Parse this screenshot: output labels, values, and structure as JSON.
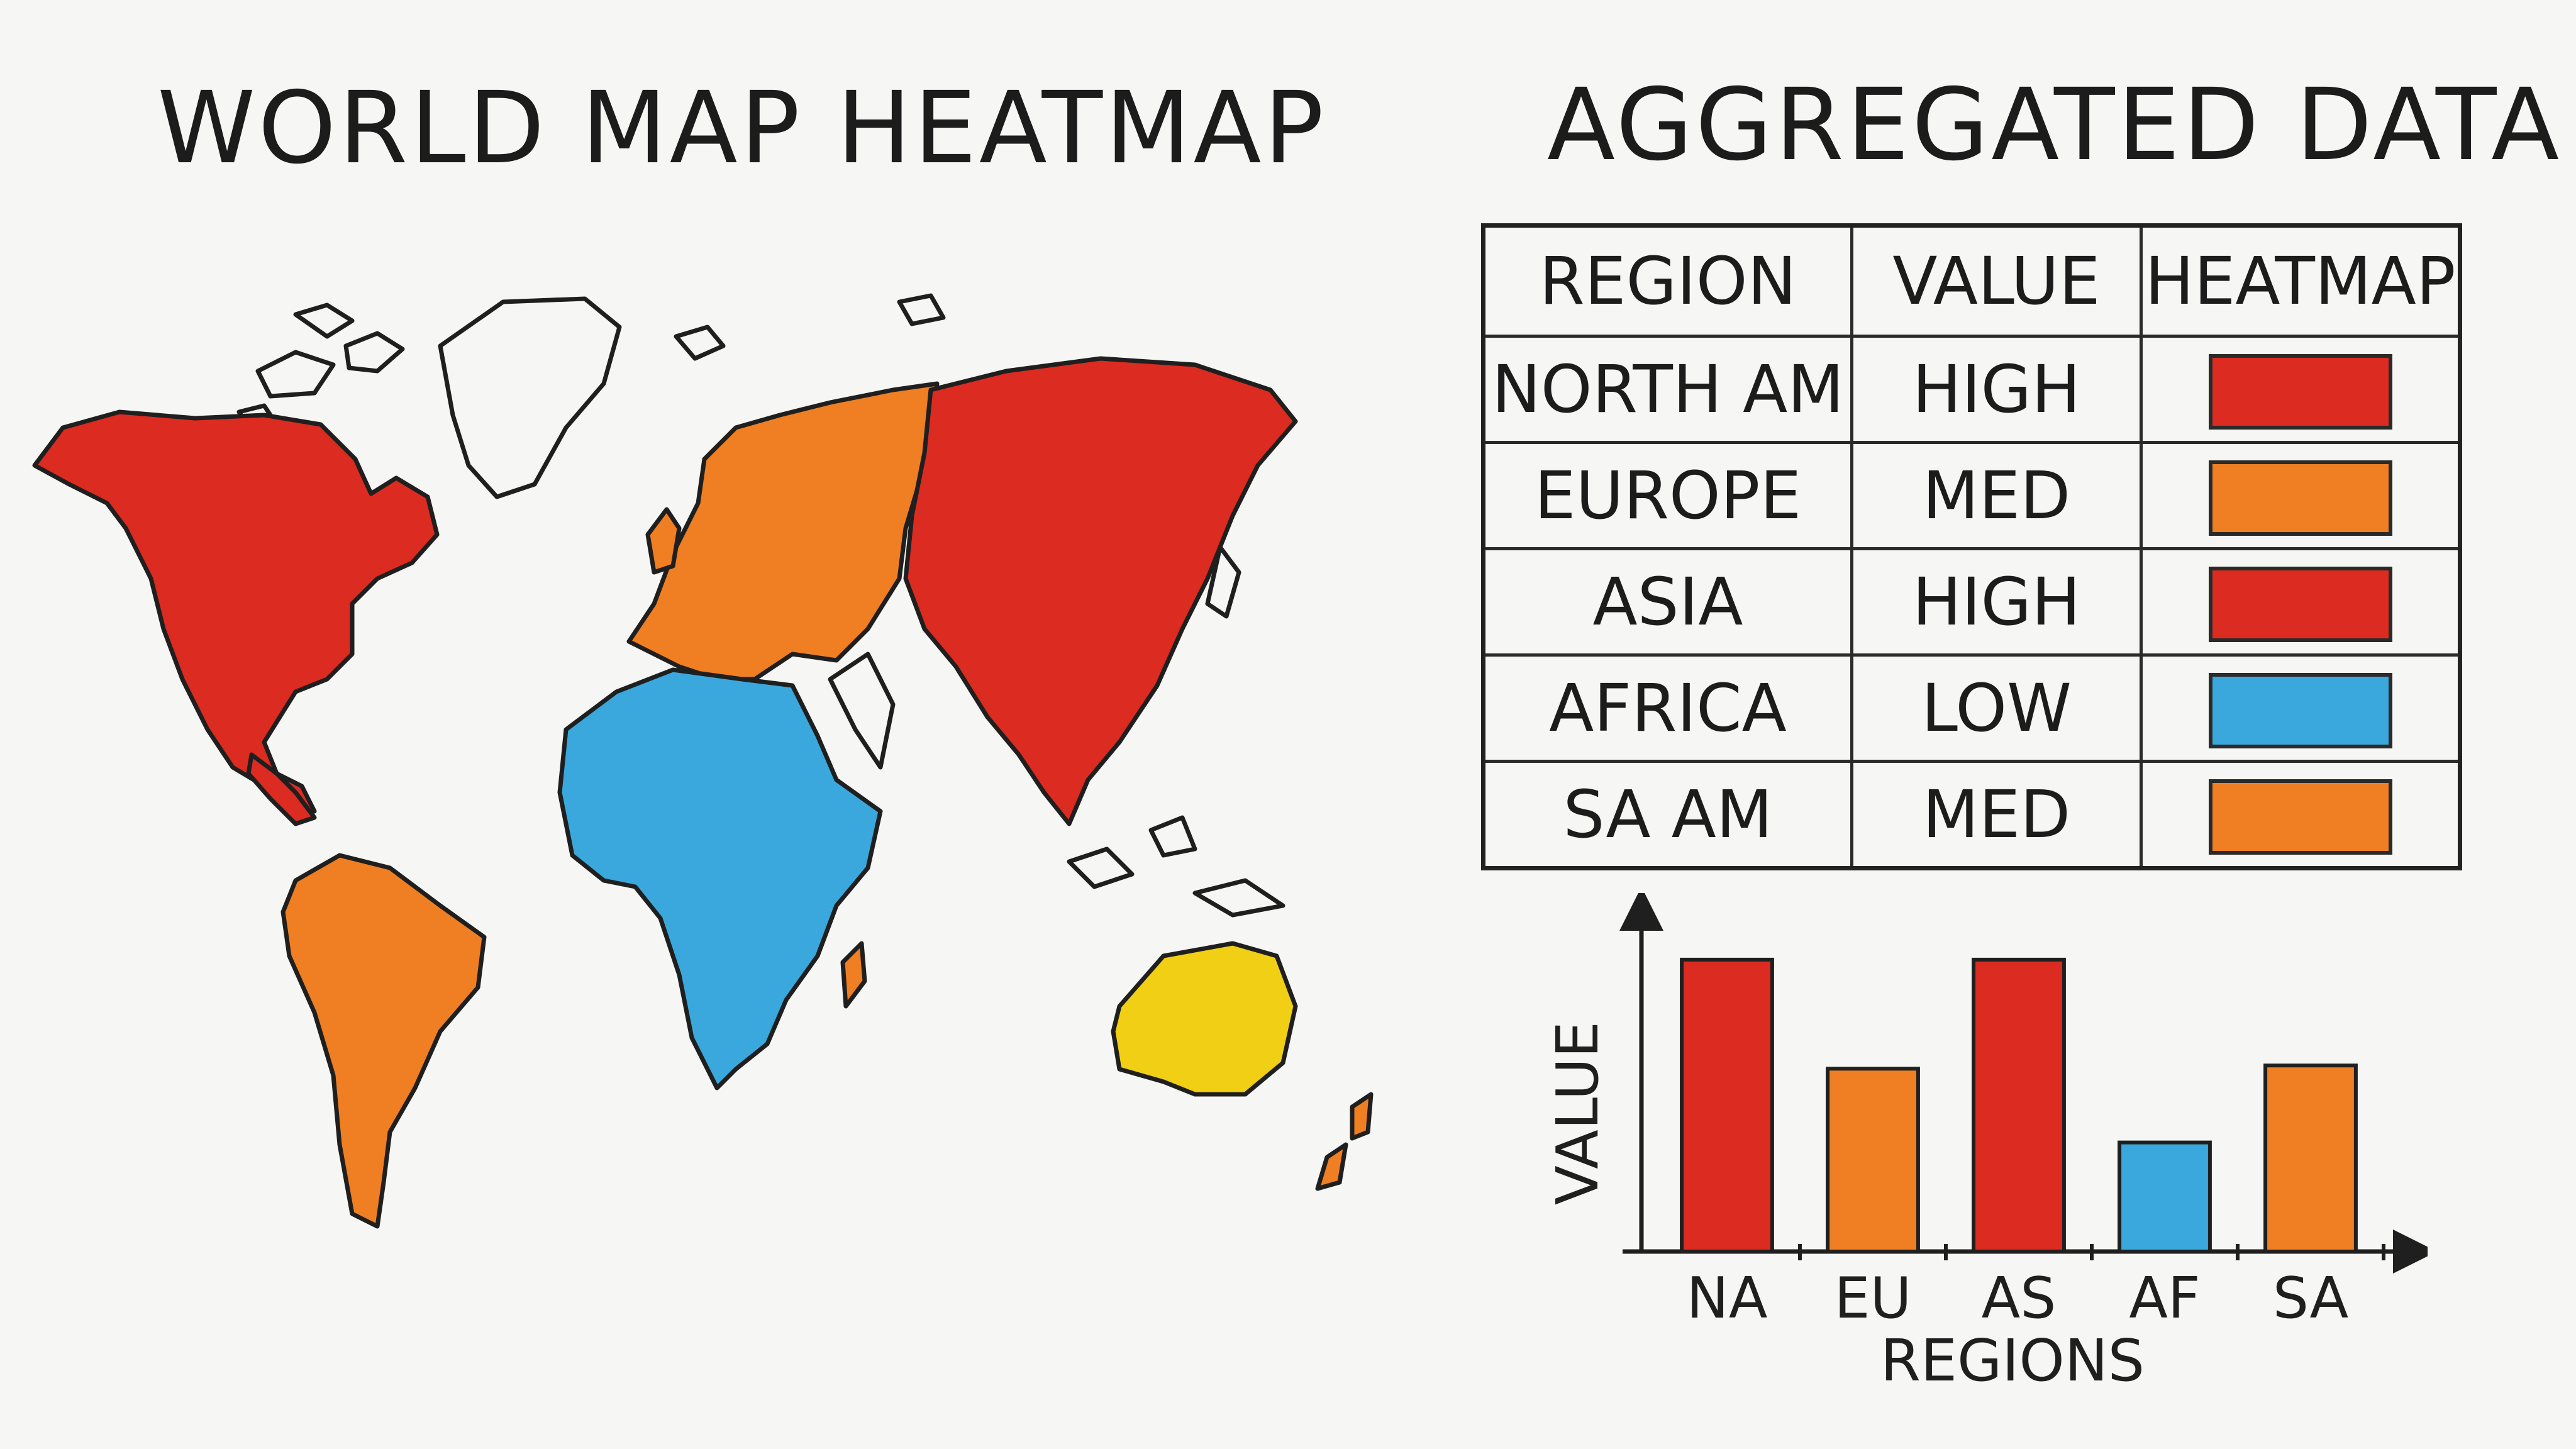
{
  "map_title": "WORLD MAP HEATMAP",
  "data_title": "AGGREGATED DATA",
  "colors": {
    "high": "#dc2b20",
    "med": "#ef7f22",
    "low": "#3aa8dc",
    "oceania": "#f1cf14",
    "ink": "#1f1f1f"
  },
  "map": {
    "regions": [
      {
        "name": "North America",
        "level": "high"
      },
      {
        "name": "South America",
        "level": "med"
      },
      {
        "name": "Europe",
        "level": "med"
      },
      {
        "name": "Asia",
        "level": "high"
      },
      {
        "name": "Africa",
        "level": "low"
      },
      {
        "name": "Australia",
        "level": "oceania"
      },
      {
        "name": "Greenland",
        "level": "none"
      }
    ]
  },
  "table": {
    "headers": [
      "REGION",
      "VALUE",
      "HEATMAP"
    ],
    "rows": [
      {
        "region": "NORTH AM",
        "value": "HIGH",
        "level": "high"
      },
      {
        "region": "EUROPE",
        "value": "MED",
        "level": "med"
      },
      {
        "region": "ASIA",
        "value": "HIGH",
        "level": "high"
      },
      {
        "region": "AFRICA",
        "value": "LOW",
        "level": "low"
      },
      {
        "region": "SA AM",
        "value": "MED",
        "level": "med"
      }
    ]
  },
  "chart_data": {
    "type": "bar",
    "categories": [
      "NA",
      "EU",
      "AS",
      "AF",
      "SA"
    ],
    "values": [
      0.91,
      0.57,
      0.91,
      0.34,
      0.58
    ],
    "levels": [
      "high",
      "med",
      "high",
      "low",
      "med"
    ],
    "xlabel": "REGIONS",
    "ylabel": "VALUE",
    "ylim": [
      0,
      1
    ],
    "grid": false
  }
}
